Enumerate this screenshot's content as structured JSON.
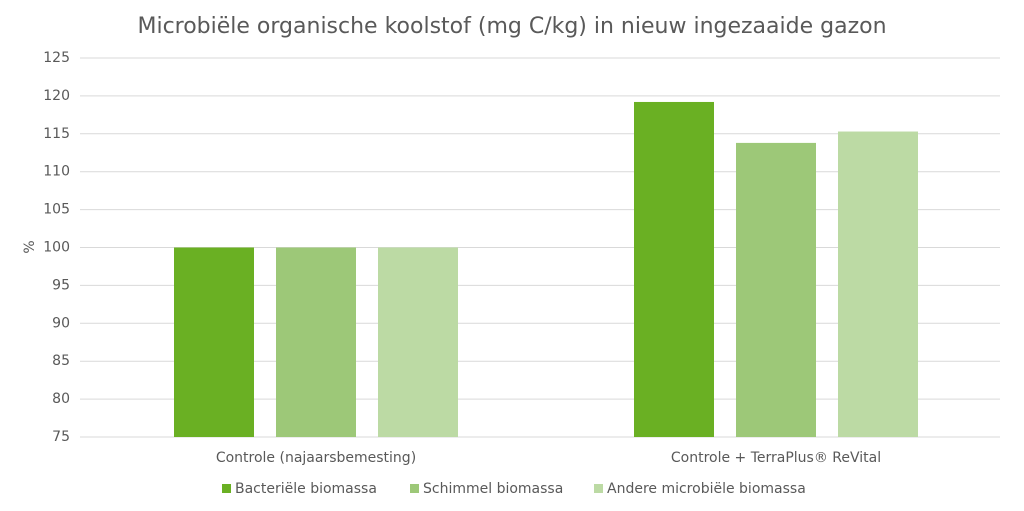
{
  "chart_data": {
    "type": "bar",
    "title": "Microbiële organische koolstof  (mg C/kg) in nieuw ingezaaide gazon",
    "y_label": "%",
    "categories": [
      "Controle (najaarsbemesting)",
      "Controle + TerraPlus® ReVital"
    ],
    "series": [
      {
        "name": "Bacteriële biomassa",
        "color": "#6ab023",
        "values": [
          100,
          119.2
        ]
      },
      {
        "name": "Schimmel biomassa",
        "color": "#9dc878",
        "values": [
          100,
          113.8
        ]
      },
      {
        "name": "Andere microbiële biomassa",
        "color": "#bcdaa4",
        "values": [
          100,
          115.3
        ]
      }
    ],
    "ylim": [
      75,
      125
    ],
    "yticks": [
      75,
      80,
      85,
      90,
      95,
      100,
      105,
      110,
      115,
      120,
      125
    ],
    "grid": true,
    "legend": "bottom"
  }
}
